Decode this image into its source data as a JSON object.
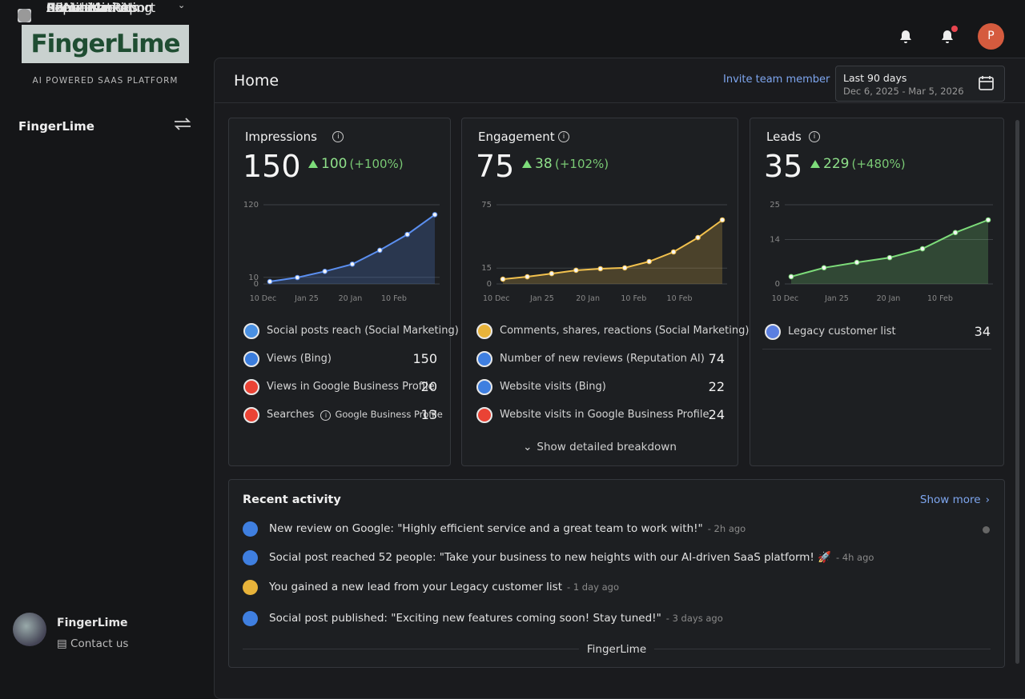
{
  "brand": {
    "logo": "FingerLime",
    "tagline": "AI POWERED SAAS PLATFORM",
    "workspace": "FingerLime"
  },
  "nav": [
    {
      "label": "Home"
    },
    {
      "label": "Conversations"
    },
    {
      "label": "CRM"
    },
    {
      "label": "AI"
    },
    {
      "label": "Executive Report"
    },
    {
      "label": "Reputation AI"
    },
    {
      "label": "Social Marketing"
    },
    {
      "label": "Automations"
    },
    {
      "label": "Administration"
    }
  ],
  "profile": {
    "name": "FingerLime",
    "contact": "Contact us"
  },
  "topbar": {
    "avatar": "P"
  },
  "header": {
    "title": "Home",
    "invite": "Invite team member",
    "range_label": "Last 90 days",
    "range_dates": "Dec 6, 2025 - Mar 5, 2026"
  },
  "cards": [
    {
      "title": "Impressions",
      "value": 150,
      "delta": 100,
      "change": "(+100%)",
      "color": "#5b8ff0",
      "chart": {
        "ylim": [
          0,
          120
        ],
        "yticks": [
          0,
          10,
          120
        ],
        "xlabels": [
          "10 Dec",
          "Jan 25",
          "20 Jan",
          "10 Feb"
        ],
        "values": [
          3.6,
          9.7,
          19,
          30,
          51,
          75,
          105
        ]
      },
      "rows": [
        {
          "label": "Social posts reach (Social Marketing)"
        },
        {
          "label": "Views (Bing)",
          "value": 150
        },
        {
          "label": "Views in Google Business Profile",
          "value": 20
        },
        {
          "label": "Searches",
          "sublabel": "Google Business Profile",
          "value": 13
        }
      ]
    },
    {
      "title": "Engagement",
      "value": 75,
      "delta": 38,
      "change": "(+102%)",
      "color": "#f2c14e",
      "chart": {
        "ylim": [
          0,
          75
        ],
        "yticks": [
          0,
          15,
          75
        ],
        "xlabels": [
          "10 Dec",
          "Jan 25",
          "20 Jan",
          "10 Feb",
          "10 Feb"
        ],
        "values": [
          4.5,
          6.8,
          9.8,
          12.9,
          14.4,
          15.2,
          21.2,
          30.3,
          43.9,
          60.6
        ]
      },
      "rows": [
        {
          "label": "Comments, shares, reactions (Social Marketing)"
        },
        {
          "label": "Number of new reviews (Reputation AI)",
          "value": 74
        },
        {
          "label": "Website visits (Bing)",
          "value": 22
        },
        {
          "label": "Website visits in Google Business Profile",
          "value": 24
        }
      ],
      "footer": "Show detailed breakdown"
    },
    {
      "title": "Leads",
      "value": 35,
      "delta": 229,
      "change": "(+480%)",
      "color": "#7ddc7a",
      "chart": {
        "ylim": [
          0,
          25
        ],
        "yticks": [
          0,
          14,
          25
        ],
        "xlabels": [
          "10 Dec",
          "Jan 25",
          "20 Jan",
          "10 Feb"
        ],
        "values": [
          2.3,
          5.1,
          6.8,
          8.3,
          11.1,
          16.2,
          20.2
        ]
      },
      "rows": [
        {
          "label": "Legacy customer list",
          "value": 34
        }
      ]
    }
  ],
  "activity": {
    "title": "Recent activity",
    "show_more": "Show more",
    "items": [
      {
        "text": "New review on Google: \"Highly efficient service and a great team to work with!\"",
        "time": "- 2h ago"
      },
      {
        "text": "Social post reached 52 people: \"Take your business to new heights with our AI-driven SaaS platform! 🚀",
        "time": "- 4h ago"
      },
      {
        "text": "You gained a new lead from your Legacy customer list",
        "time": "- 1 day ago"
      },
      {
        "text": "Social post published: \"Exciting new features coming soon! Stay tuned!\"",
        "time": "- 3 days ago"
      }
    ],
    "footer": "FingerLime"
  }
}
